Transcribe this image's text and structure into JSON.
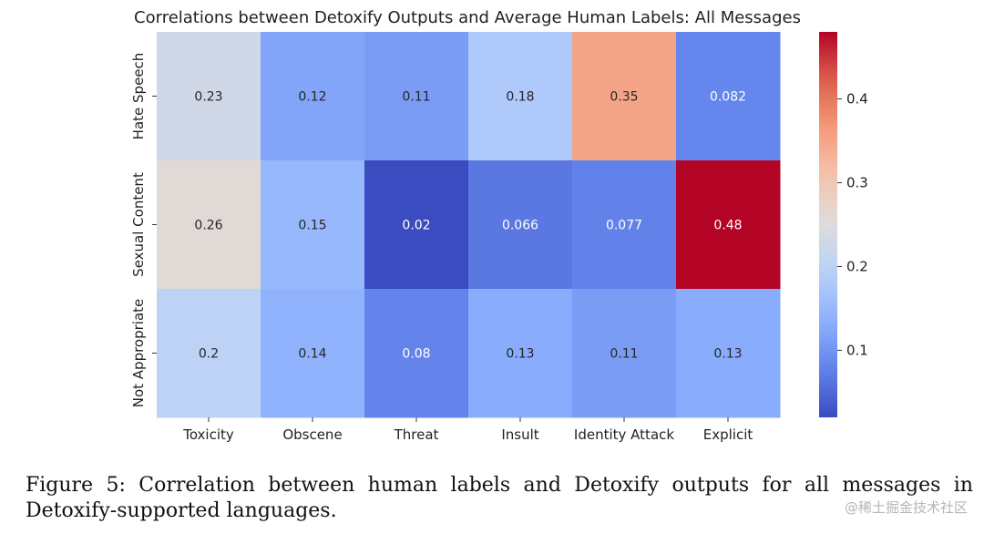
{
  "chart_data": {
    "type": "heatmap",
    "title": "Correlations between Detoxify Outputs and Average Human Labels: All Messages",
    "columns": [
      "Toxicity",
      "Obscene",
      "Threat",
      "Insult",
      "Identity Attack",
      "Explicit"
    ],
    "rows": [
      "Hate Speech",
      "Sexual Content",
      "Not Appropriate"
    ],
    "values": [
      [
        0.23,
        0.12,
        0.11,
        0.18,
        0.35,
        0.082
      ],
      [
        0.26,
        0.15,
        0.02,
        0.066,
        0.077,
        0.48
      ],
      [
        0.2,
        0.14,
        0.08,
        0.13,
        0.11,
        0.13
      ]
    ],
    "value_labels": [
      [
        "0.23",
        "0.12",
        "0.11",
        "0.18",
        "0.35",
        "0.082"
      ],
      [
        "0.26",
        "0.15",
        "0.02",
        "0.066",
        "0.077",
        "0.48"
      ],
      [
        "0.2",
        "0.14",
        "0.08",
        "0.13",
        "0.11",
        "0.13"
      ]
    ],
    "colormap": "coolwarm",
    "colorbar": {
      "min": 0.02,
      "max": 0.48,
      "ticks": [
        0.1,
        0.2,
        0.3,
        0.4
      ],
      "tick_labels": [
        "0.1",
        "0.2",
        "0.3",
        "0.4"
      ]
    },
    "grid": false
  },
  "caption": "Figure 5: Correlation between human labels and Detoxify outputs for all messages in Detoxify-supported languages.",
  "watermark": "@稀土掘金技术社区"
}
